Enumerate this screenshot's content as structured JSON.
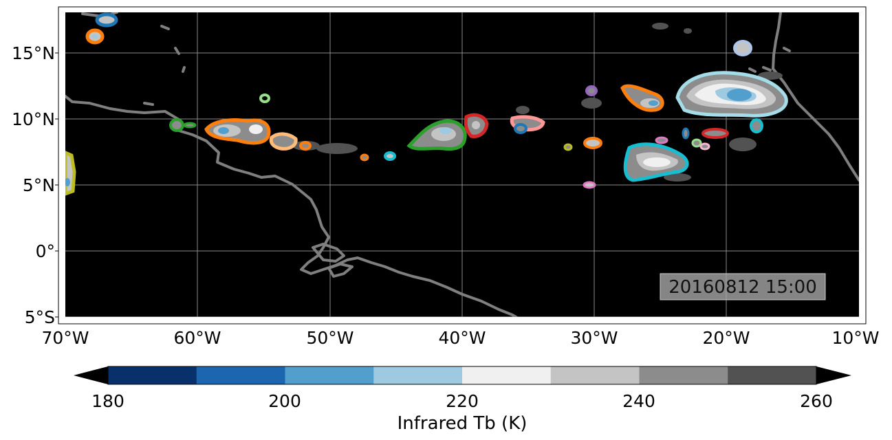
{
  "map": {
    "timestamp": "20160812 15:00",
    "lon_ticks": [
      "70°W",
      "60°W",
      "50°W",
      "40°W",
      "30°W",
      "20°W",
      "10°W"
    ],
    "lat_ticks": [
      "15°N",
      "10°N",
      "5°N",
      "0°",
      "5°S"
    ],
    "lon_range": [
      -70,
      -10
    ],
    "lat_range": [
      -5,
      18
    ],
    "background_color": "#000000",
    "coastline_color": "#7f7f7f"
  },
  "colorbar": {
    "label": "Infrared Tb (K)",
    "tick_labels": [
      "180",
      "200",
      "220",
      "240",
      "260"
    ],
    "levels": [
      180,
      190,
      200,
      210,
      220,
      230,
      240,
      250,
      260
    ],
    "colors": [
      "#08306b",
      "#1c66b0",
      "#529ecd",
      "#9ecae1",
      "#f0f0f0",
      "#c4c4c4",
      "#8c8c8c",
      "#525252"
    ],
    "under_color": "#000000",
    "over_color": "#000000"
  }
}
